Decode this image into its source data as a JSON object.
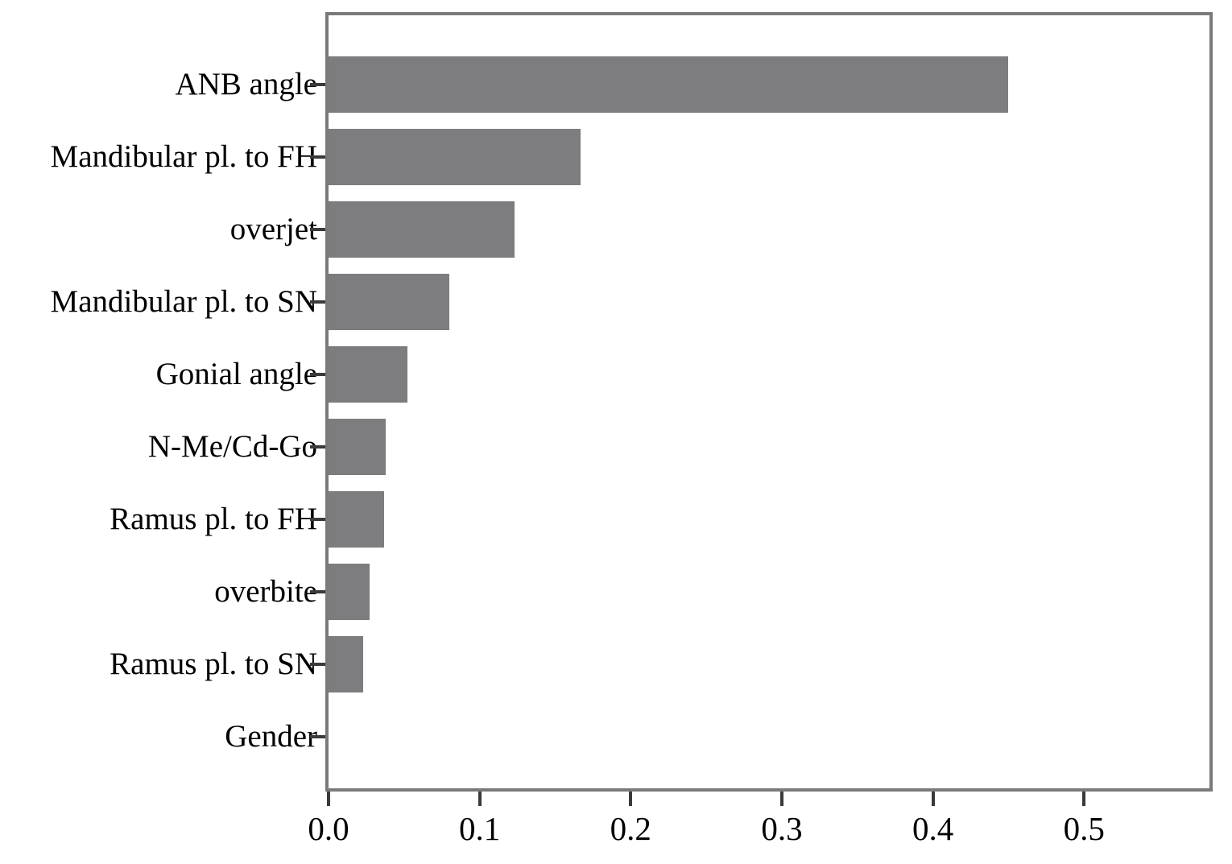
{
  "figure": {
    "background": "#ffffff",
    "bar_color": "#7d7d80",
    "frame_color": "#7a7a7a",
    "tick_color": "#3a3a3a",
    "text_color": "#000000"
  },
  "chart_data": {
    "type": "bar",
    "orientation": "horizontal",
    "title": "",
    "xlabel": "",
    "ylabel": "",
    "grid": false,
    "legend_position": "none",
    "categories": [
      "ANB angle",
      "Mandibular pl. to FH",
      "overjet",
      "Mandibular pl. to SN",
      "Gonial angle",
      "N-Me/Cd-Go",
      "Ramus pl. to FH",
      "overbite",
      "Ramus pl. to SN",
      "Gender"
    ],
    "values": [
      0.45,
      0.167,
      0.123,
      0.08,
      0.052,
      0.038,
      0.037,
      0.027,
      0.023,
      0.0
    ],
    "x_ticks": [
      0.0,
      0.1,
      0.2,
      0.3,
      0.4,
      0.5
    ],
    "x_tick_labels": [
      "0.0",
      "0.1",
      "0.2",
      "0.3",
      "0.4",
      "0.5"
    ],
    "xlim": [
      0,
      0.583
    ]
  }
}
